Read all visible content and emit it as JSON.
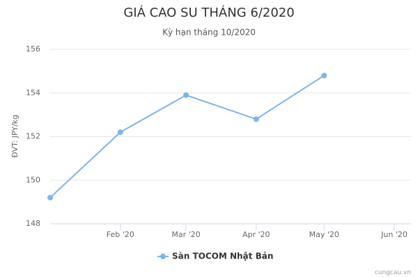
{
  "chart_data": {
    "type": "line",
    "title": "GIÁ CAO SU THÁNG 6/2020",
    "subtitle": "Kỳ hạn tháng 10/2020",
    "y_label": "ĐVT: JPY/kg",
    "credit": "cungcau.vn",
    "x": [
      "2020-01",
      "2020-02",
      "2020-03",
      "2020-04",
      "2020-05"
    ],
    "series": [
      {
        "name": "Sàn TOCOM Nhật Bản",
        "color": "#7cb5ec",
        "values": [
          149.2,
          152.2,
          153.9,
          152.8,
          154.8
        ]
      }
    ],
    "xlim": [
      "2020-01",
      "2020-06"
    ],
    "xticks": [
      {
        "value": "2020-02",
        "label": "Feb '20"
      },
      {
        "value": "2020-03",
        "label": "Mar '20"
      },
      {
        "value": "2020-04",
        "label": "Apr '20"
      },
      {
        "value": "2020-05",
        "label": "May '20"
      },
      {
        "value": "2020-06",
        "label": "Jun '20"
      }
    ],
    "ylim": [
      148,
      156
    ],
    "yticks": [
      148,
      150,
      152,
      154,
      156
    ],
    "grid": true
  }
}
